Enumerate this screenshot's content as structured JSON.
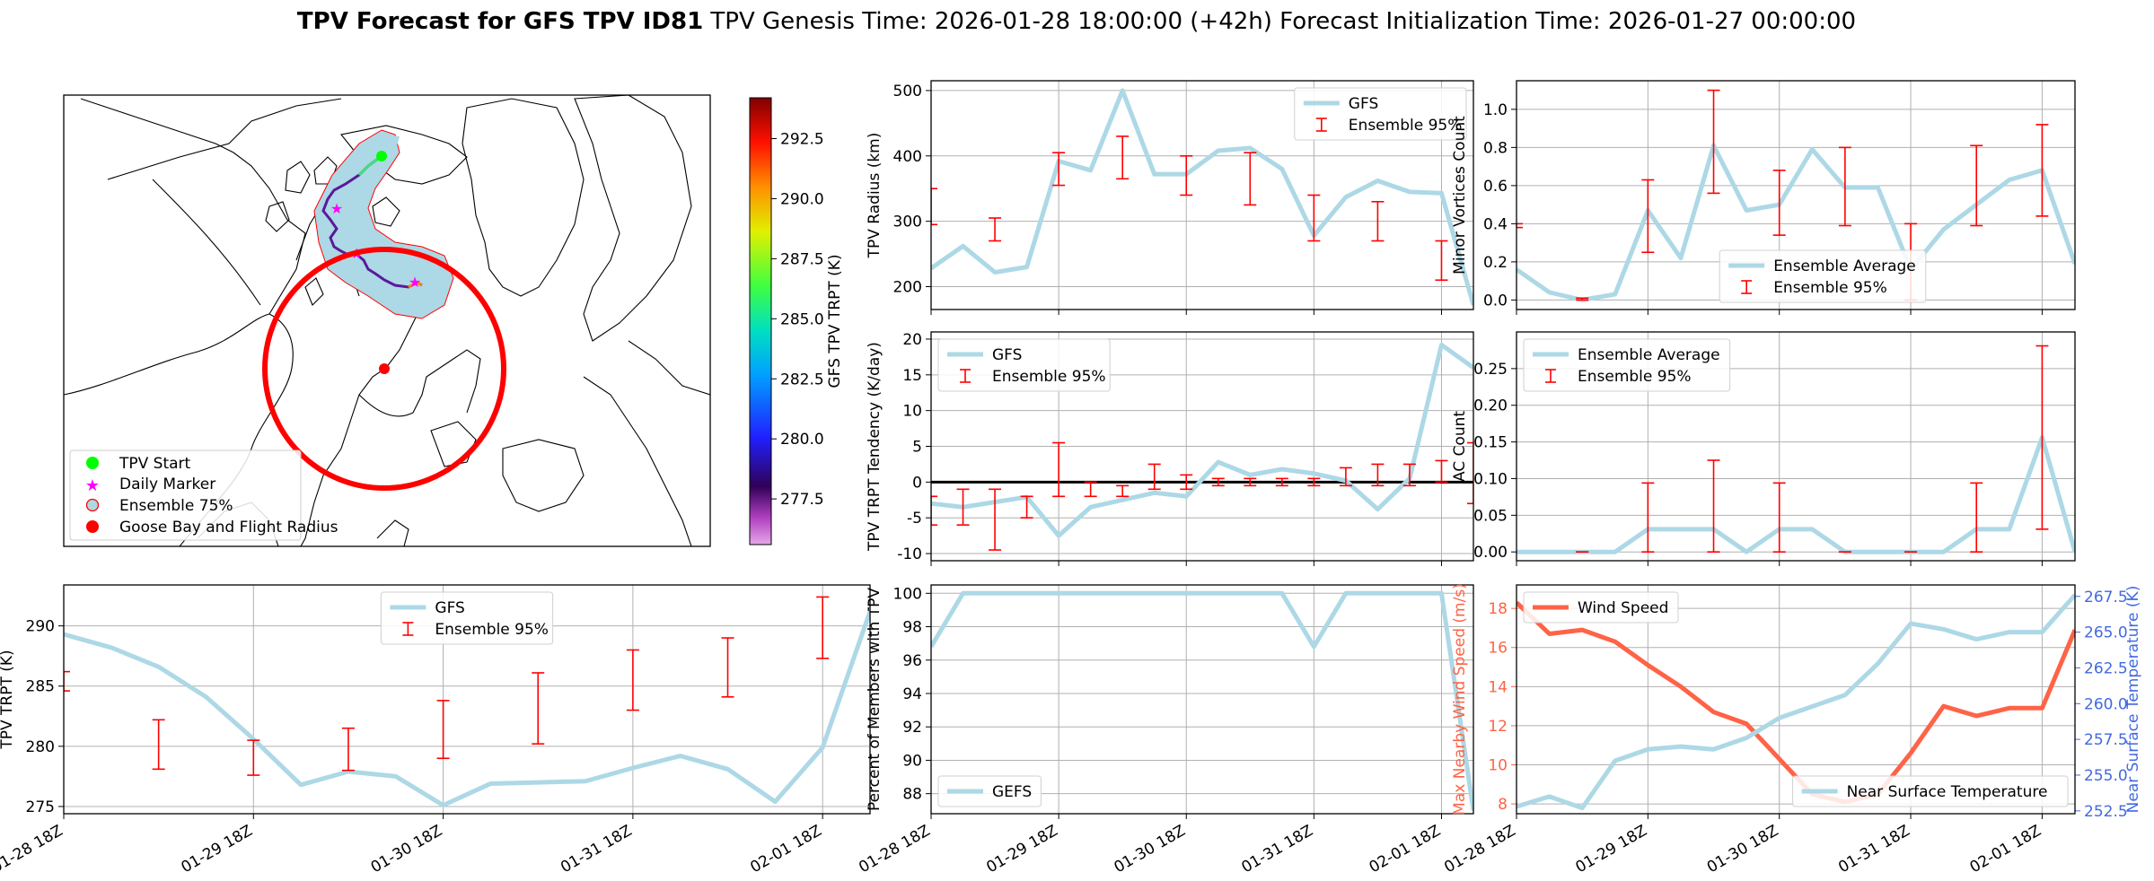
{
  "figure": {
    "title_bold": "TPV Forecast for GFS TPV ID81",
    "title_rest": "TPV Genesis Time: 2026-01-28 18:00:00 (+42h)   Forecast Initialization Time: 2026-01-27 00:00:00"
  },
  "map": {
    "colorbar_label": "GFS TPV TRPT (K)",
    "colorbar_ticks": [
      "277.5",
      "280.0",
      "282.5",
      "285.0",
      "287.5",
      "290.0",
      "292.5"
    ],
    "colorbar_range": [
      275.6,
      294.2
    ],
    "legend": [
      {
        "label": "TPV Start",
        "color": "#00ff00",
        "marker": "circle"
      },
      {
        "label": "Daily Marker",
        "color": "#ff00ff",
        "marker": "star"
      },
      {
        "label": "Ensemble 75%",
        "color": "#add8e6",
        "marker": "ring"
      },
      {
        "label": "Goose Bay and Flight Radius",
        "color": "#ff0000",
        "marker": "circle"
      }
    ]
  },
  "chart_data": [
    {
      "id": "radius",
      "type": "line",
      "x_ticks": [
        "01-28 18Z",
        "01-29 18Z",
        "01-30 18Z",
        "01-31 18Z",
        "02-01 18Z"
      ],
      "ylabel": "TPV Radius (km)",
      "ylim": [
        165,
        515
      ],
      "yticks": [
        "200",
        "300",
        "400",
        "500"
      ],
      "series": [
        {
          "name": "GFS",
          "color": "#add8e6",
          "values": [
            228,
            262,
            222,
            230,
            392,
            378,
            500,
            372,
            372,
            408,
            412,
            380,
            278,
            337,
            362,
            345,
            343,
            172
          ]
        }
      ],
      "error_bars": {
        "name": "Ensemble 95%",
        "color": "#ff0000",
        "ranges": [
          [
            295,
            350
          ],
          null,
          [
            270,
            305
          ],
          null,
          [
            355,
            405
          ],
          null,
          [
            365,
            430
          ],
          null,
          [
            340,
            400
          ],
          null,
          [
            325,
            405
          ],
          null,
          [
            270,
            340
          ],
          null,
          [
            270,
            330
          ],
          null,
          [
            210,
            270
          ],
          null
        ]
      },
      "legend": "top-right"
    },
    {
      "id": "tendency",
      "type": "line",
      "x_ticks": [
        "01-28 18Z",
        "01-29 18Z",
        "01-30 18Z",
        "01-31 18Z",
        "02-01 18Z"
      ],
      "ylabel": "TPV TRPT Tendency (K/day)",
      "ylim": [
        -11,
        21
      ],
      "yticks": [
        "-10",
        "-5",
        "0",
        "5",
        "10",
        "15",
        "20"
      ],
      "series": [
        {
          "name": "GFS",
          "color": "#add8e6",
          "values": [
            -3,
            -3.5,
            -2.8,
            -2.1,
            -7.5,
            -3.5,
            -2.5,
            -1.5,
            -2,
            2.8,
            1,
            1.8,
            1.2,
            0.2,
            -3.8,
            0.5,
            19.2,
            16
          ]
        }
      ],
      "error_bars": {
        "name": "Ensemble 95%",
        "color": "#ff0000",
        "ranges": [
          [
            -6,
            -2
          ],
          [
            -6,
            -1
          ],
          [
            -9.5,
            -1
          ],
          [
            -5,
            -2
          ],
          [
            -2,
            5.5
          ],
          [
            -2,
            0
          ],
          [
            -2,
            -0.5
          ],
          [
            -1,
            2.5
          ],
          [
            -1,
            1
          ],
          [
            -0.5,
            0.5
          ],
          [
            -0.5,
            0.5
          ],
          [
            -0.5,
            0.5
          ],
          [
            -0.5,
            0.5
          ],
          [
            -0.5,
            2
          ],
          [
            -0.5,
            2.5
          ],
          [
            -0.5,
            2.5
          ],
          [
            0,
            3
          ],
          [
            -3,
            5.5
          ]
        ]
      },
      "zero_line": true,
      "legend": "top-left"
    },
    {
      "id": "percent",
      "type": "line",
      "x_ticks": [
        "01-28 18Z",
        "01-29 18Z",
        "01-30 18Z",
        "01-31 18Z",
        "02-01 18Z"
      ],
      "ylabel": "Percent of Members with TPV",
      "ylim": [
        86.8,
        100.5
      ],
      "yticks": [
        "88",
        "90",
        "92",
        "94",
        "96",
        "98",
        "100"
      ],
      "series": [
        {
          "name": "GEFS",
          "color": "#add8e6",
          "values": [
            96.8,
            100,
            100,
            100,
            100,
            100,
            100,
            100,
            100,
            100,
            100,
            100,
            96.8,
            100,
            100,
            100,
            100,
            87
          ]
        }
      ],
      "legend": "bottom-left"
    },
    {
      "id": "minor",
      "type": "line",
      "x_ticks": [
        "01-28 18Z",
        "01-29 18Z",
        "01-30 18Z",
        "01-31 18Z",
        "02-01 18Z"
      ],
      "ylabel": "Minor Vortices Count",
      "ylim": [
        -0.05,
        1.15
      ],
      "yticks": [
        "0.0",
        "0.2",
        "0.4",
        "0.6",
        "0.8",
        "1.0"
      ],
      "series": [
        {
          "name": "Ensemble Average",
          "color": "#add8e6",
          "values": [
            0.16,
            0.04,
            0,
            0.03,
            0.47,
            0.22,
            0.81,
            0.47,
            0.5,
            0.79,
            0.59,
            0.59,
            0.16,
            0.37,
            0.5,
            0.63,
            0.68,
            0.19
          ]
        }
      ],
      "error_bars": {
        "name": "Ensemble 95%",
        "color": "#ff0000",
        "ranges": [
          [
            0.38,
            0.4
          ],
          null,
          [
            0,
            0.01
          ],
          null,
          [
            0.25,
            0.63
          ],
          null,
          [
            0.56,
            1.1
          ],
          null,
          [
            0.34,
            0.68
          ],
          null,
          [
            0.39,
            0.8
          ],
          null,
          [
            0,
            0.4
          ],
          null,
          [
            0.39,
            0.81
          ],
          null,
          [
            0.44,
            0.92
          ],
          null
        ]
      },
      "legend": "bottom-center"
    },
    {
      "id": "ac",
      "type": "line",
      "x_ticks": [
        "01-28 18Z",
        "01-29 18Z",
        "01-30 18Z",
        "01-31 18Z",
        "02-01 18Z"
      ],
      "ylabel": "AC Count",
      "ylim": [
        -0.012,
        0.3
      ],
      "yticks": [
        "0.00",
        "0.05",
        "0.10",
        "0.15",
        "0.20",
        "0.25"
      ],
      "series": [
        {
          "name": "Ensemble Average",
          "color": "#add8e6",
          "values": [
            0,
            0,
            0,
            0,
            0.031,
            0.031,
            0.031,
            0,
            0.031,
            0.031,
            0,
            0,
            0,
            0,
            0.031,
            0.031,
            0.156,
            0
          ]
        }
      ],
      "error_bars": {
        "name": "Ensemble 95%",
        "color": "#ff0000",
        "ranges": [
          null,
          null,
          [
            0,
            0
          ],
          null,
          [
            0,
            0.094
          ],
          null,
          [
            0,
            0.125
          ],
          null,
          [
            0,
            0.094
          ],
          null,
          [
            0,
            0
          ],
          null,
          [
            0,
            0
          ],
          null,
          [
            0,
            0.094
          ],
          null,
          [
            0.031,
            0.281
          ],
          null
        ]
      },
      "legend": "top-left"
    },
    {
      "id": "wind",
      "type": "line",
      "x_ticks": [
        "01-28 18Z",
        "01-29 18Z",
        "01-30 18Z",
        "01-31 18Z",
        "02-01 18Z"
      ],
      "ylabel": "Max Nearby Wind Speed (m/s)",
      "ylabel_color": "#ff6347",
      "ylim": [
        7.5,
        19.2
      ],
      "yticks": [
        "8",
        "10",
        "12",
        "14",
        "16",
        "18"
      ],
      "y2label": "Near Surface Temperature (K)",
      "y2label_color": "#4169e1",
      "y2lim": [
        252.3,
        268.3
      ],
      "y2ticks": [
        "252.5",
        "255.0",
        "257.5",
        "260.0",
        "262.5",
        "265.0",
        "267.5"
      ],
      "series": [
        {
          "name": "Wind Speed",
          "color": "#ff6347",
          "axis": "left",
          "values": [
            18.3,
            16.7,
            16.9,
            16.3,
            15.1,
            14.0,
            12.7,
            12.1,
            10.3,
            8.5,
            8.1,
            8.5,
            10.6,
            13.0,
            12.5,
            12.9,
            12.9,
            16.9
          ]
        },
        {
          "name": "Near Surface Temperature",
          "color": "#add8e6",
          "axis": "right",
          "values": [
            252.8,
            253.5,
            252.7,
            256.0,
            256.8,
            257.0,
            256.8,
            257.6,
            259.0,
            259.8,
            260.6,
            262.8,
            265.6,
            265.2,
            264.5,
            265.0,
            265.0,
            267.6
          ]
        }
      ],
      "legend_left": "top-left",
      "legend_right": "bottom-right"
    },
    {
      "id": "trpt",
      "type": "line",
      "x_ticks": [
        "01-28 18Z",
        "01-29 18Z",
        "01-30 18Z",
        "01-31 18Z",
        "02-01 18Z"
      ],
      "ylabel": "TPV TRPT (K)",
      "ylim": [
        274.4,
        293.4
      ],
      "yticks": [
        "275",
        "280",
        "285",
        "290"
      ],
      "series": [
        {
          "name": "GFS",
          "color": "#add8e6",
          "values": [
            289.3,
            288.2,
            286.6,
            284.1,
            280.6,
            276.8,
            277.9,
            277.5,
            275.1,
            276.9,
            277.0,
            277.1,
            278.2,
            279.2,
            278.1,
            275.4,
            279.9,
            291.2
          ]
        }
      ],
      "error_bars": {
        "name": "Ensemble 95%",
        "color": "#ff0000",
        "ranges": [
          [
            284.6,
            286.2
          ],
          null,
          [
            278.1,
            282.2
          ],
          null,
          [
            277.6,
            280.5
          ],
          null,
          [
            278.0,
            281.5
          ],
          null,
          [
            279.0,
            283.8
          ],
          null,
          [
            280.2,
            286.1
          ],
          null,
          [
            283.0,
            288.0
          ],
          null,
          [
            284.1,
            289.0
          ],
          null,
          [
            287.3,
            292.4
          ],
          null
        ]
      },
      "legend": "top-center"
    }
  ]
}
